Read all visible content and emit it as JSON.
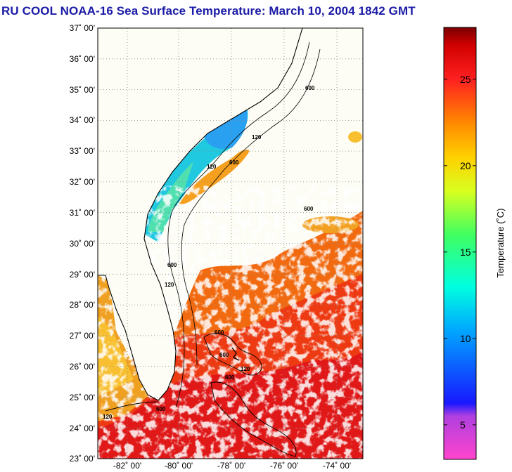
{
  "title": "RU COOL  NOAA-16  Sea Surface Temperature:  March 10, 2004 1842 GMT",
  "map": {
    "lat_labels": [
      "37˚ 00'",
      "36˚ 00'",
      "35˚ 00'",
      "34˚ 00'",
      "33˚ 00'",
      "32˚ 00'",
      "31˚ 00'",
      "30˚ 00'",
      "29˚ 00'",
      "28˚ 00'",
      "27˚ 00'",
      "26˚ 00'",
      "25˚ 00'",
      "24˚ 00'",
      "23˚ 00'"
    ],
    "lon_labels": [
      "-82˚ 00'",
      "-80˚ 00'",
      "-78˚ 00'",
      "-76˚ 00'",
      "-74˚ 00'"
    ],
    "contour_labels": [
      "600",
      "120",
      "600",
      "120",
      "600",
      "120",
      "600",
      "120",
      "600",
      "600",
      "600",
      "120",
      "600"
    ]
  },
  "colorbar": {
    "label": "Temperature (˚C)",
    "ticks": [
      "25",
      "20",
      "15",
      "10",
      "5"
    ],
    "tick_values": [
      25,
      20,
      15,
      10,
      5
    ],
    "min": 3,
    "max": 28
  },
  "colors": {
    "title": "#1a1aa6",
    "land": "#fdfdf5",
    "grid": "#888888"
  }
}
